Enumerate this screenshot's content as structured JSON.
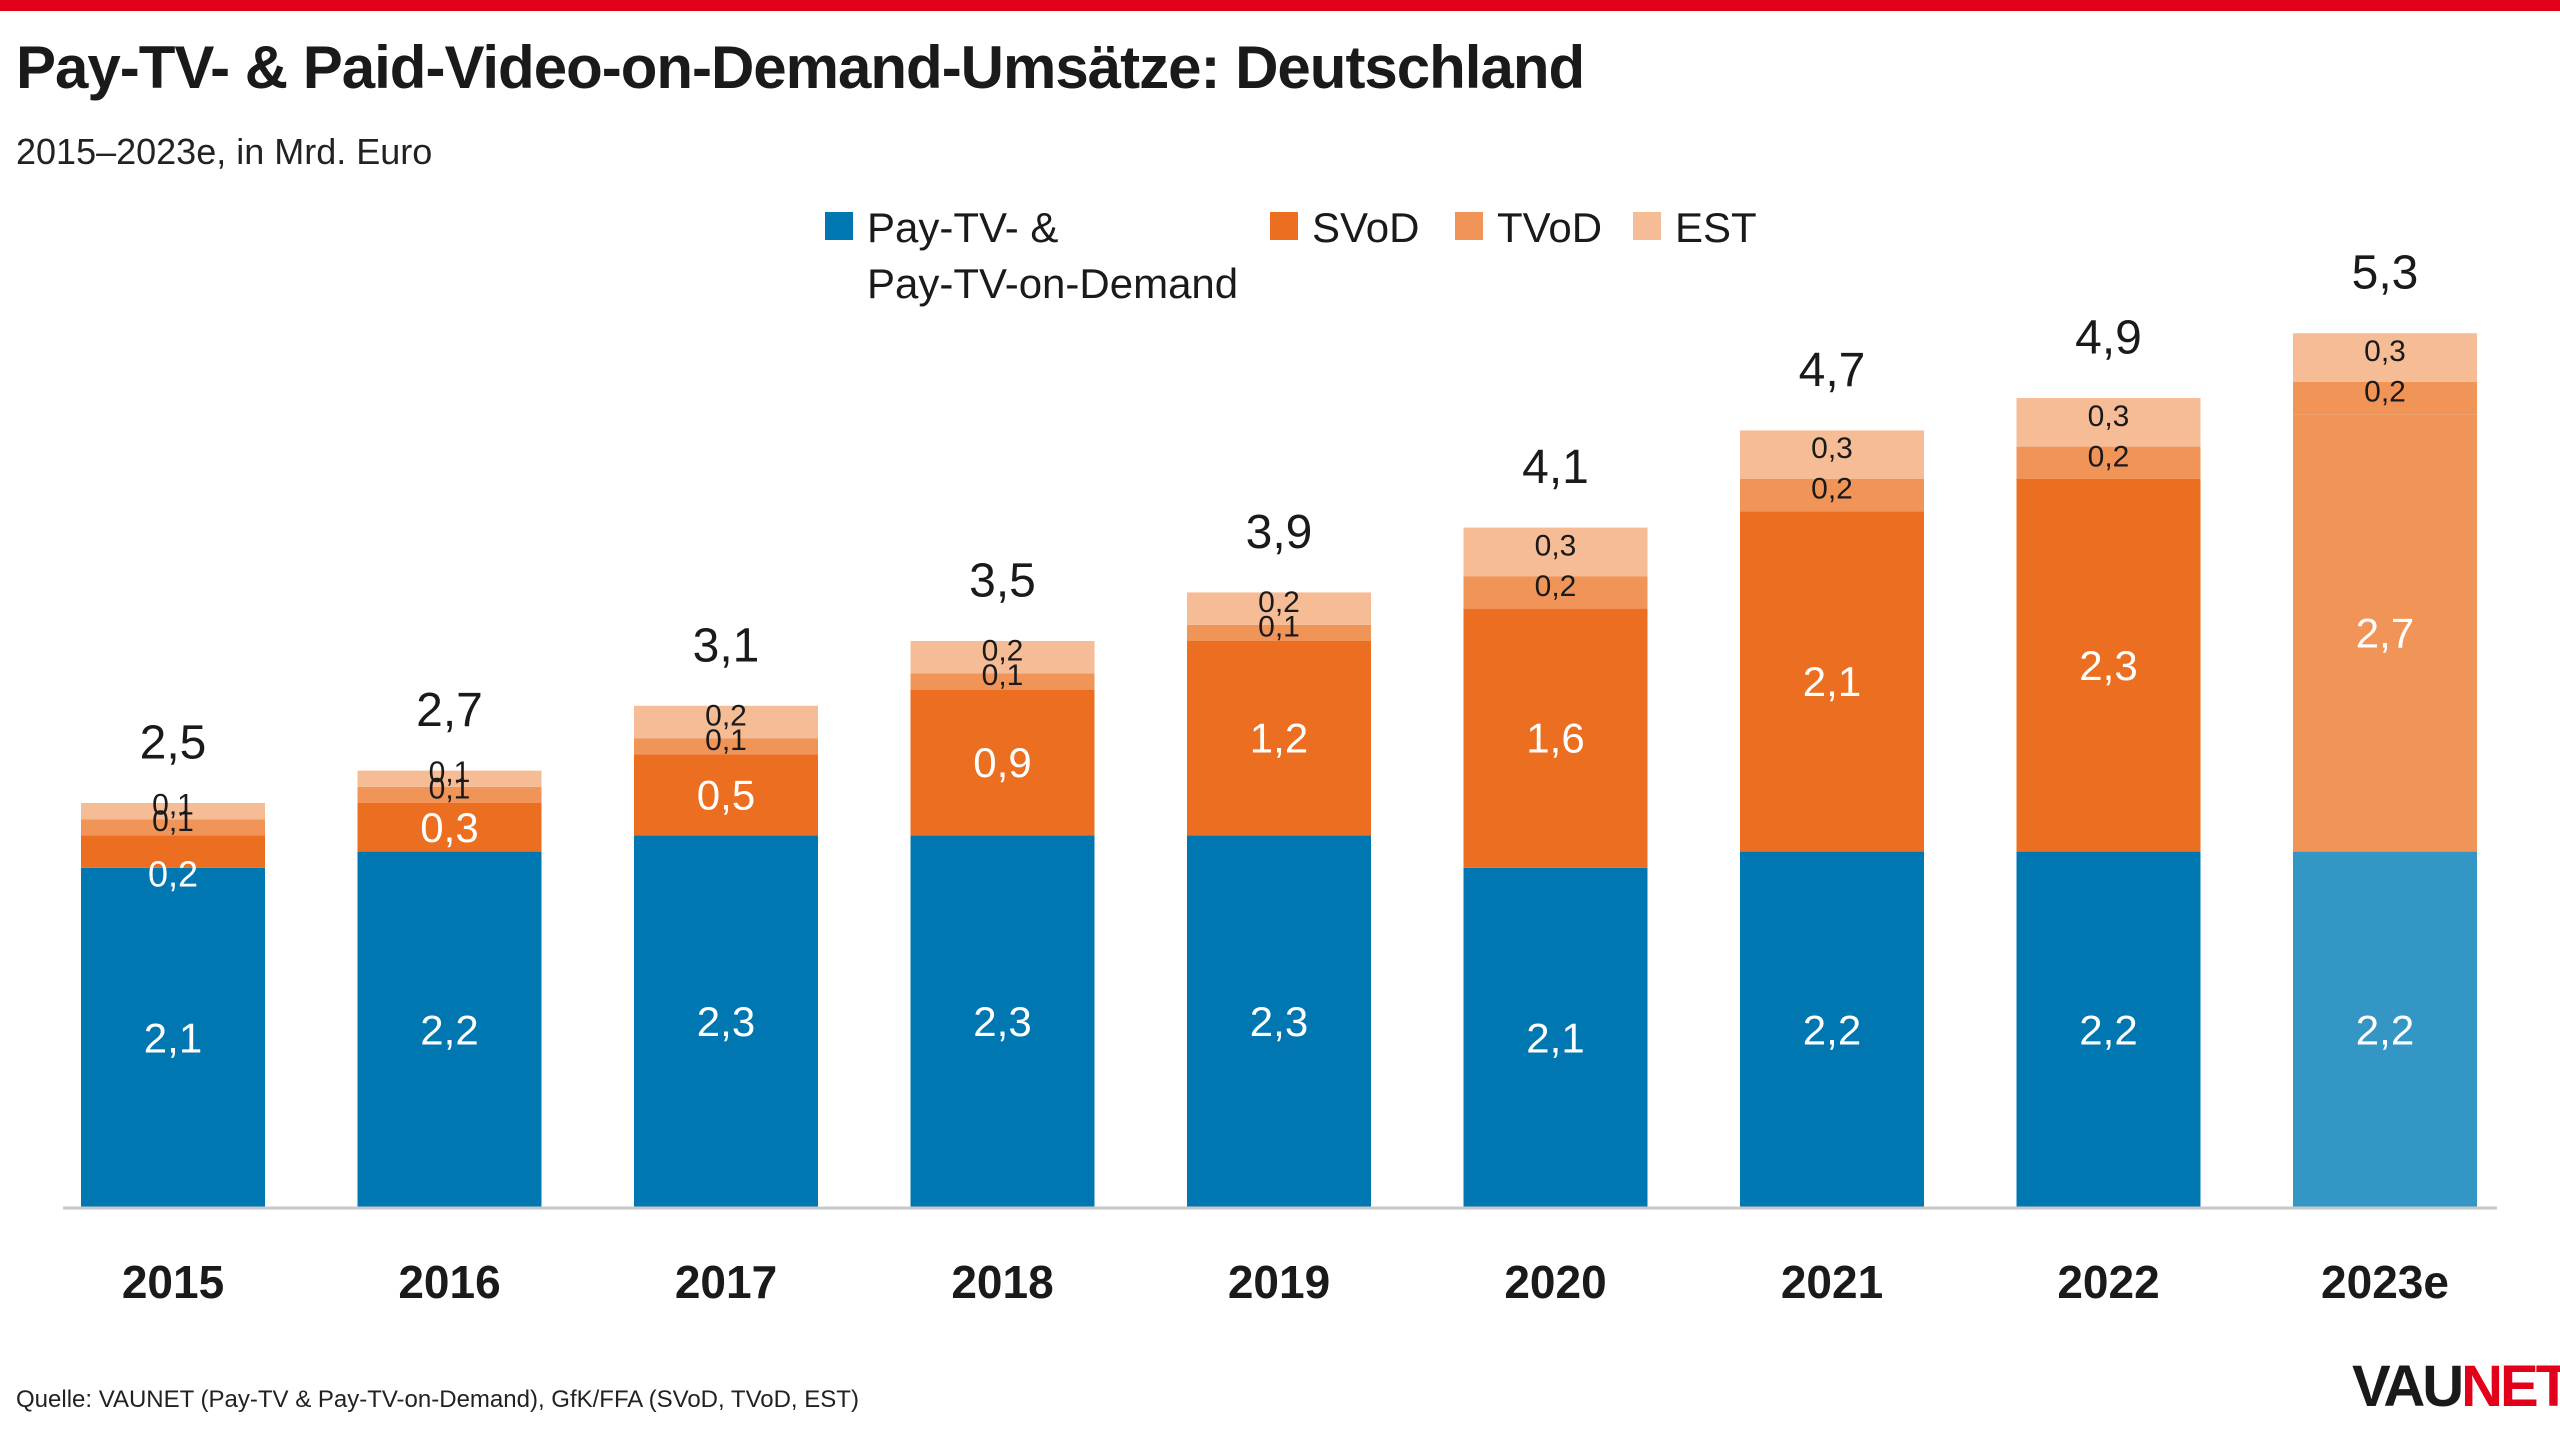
{
  "header": {
    "title": "Pay-TV- & Paid-Video-on-Demand-Umsätze: Deutschland",
    "subtitle": "2015–2023e, in Mrd. Euro"
  },
  "footer": {
    "source": "Quelle: VAUNET (Pay-TV & Pay-TV-on-Demand), GfK/FFA (SVoD, TVoD, EST)",
    "logo_part1": "VAU",
    "logo_part2": "NET"
  },
  "colors": {
    "pay_tv": "#0177b2",
    "pay_tv_forecast": "#3396c5",
    "svod": "#ec6e20",
    "tvod": "#f19458",
    "est": "#f6bc95",
    "brand_red": "#e2001a",
    "axis": "#c8c8c8"
  },
  "legend": [
    {
      "label": "Pay-TV- &\nPay-TV-on-Demand",
      "color": "#0177b2"
    },
    {
      "label": "SVoD",
      "color": "#ec6e20"
    },
    {
      "label": "TVoD",
      "color": "#f19458"
    },
    {
      "label": "EST",
      "color": "#f6bc95"
    }
  ],
  "chart_data": {
    "type": "bar",
    "stacked": true,
    "categories": [
      "2015",
      "2016",
      "2017",
      "2018",
      "2019",
      "2020",
      "2021",
      "2022",
      "2023e"
    ],
    "series": [
      {
        "name": "Pay-TV- & Pay-TV-on-Demand",
        "values": [
          2.1,
          2.2,
          2.3,
          2.3,
          2.3,
          2.1,
          2.2,
          2.2,
          2.2
        ],
        "labels": [
          "2,1",
          "2,2",
          "2,3",
          "2,3",
          "2,3",
          "2,1",
          "2,2",
          "2,2",
          "2,2"
        ]
      },
      {
        "name": "SVoD",
        "values": [
          0.2,
          0.3,
          0.5,
          0.9,
          1.2,
          1.6,
          2.1,
          2.3,
          2.7
        ],
        "labels": [
          "0,2",
          "0,3",
          "0,5",
          "0,9",
          "1,2",
          "1,6",
          "2,1",
          "2,3",
          "2,7"
        ]
      },
      {
        "name": "TVoD",
        "values": [
          0.1,
          0.1,
          0.1,
          0.1,
          0.1,
          0.2,
          0.2,
          0.2,
          0.2
        ],
        "labels": [
          "0,1",
          "0,1",
          "0,1",
          "0,1",
          "0,1",
          "0,2",
          "0,2",
          "0,2",
          "0,2"
        ]
      },
      {
        "name": "EST",
        "values": [
          0.1,
          0.1,
          0.2,
          0.2,
          0.2,
          0.3,
          0.3,
          0.3,
          0.3
        ],
        "labels": [
          "0,1",
          "0,1",
          "0,2",
          "0,2",
          "0,2",
          "0,3",
          "0,3",
          "0,3",
          "0,3"
        ]
      }
    ],
    "totals": [
      2.5,
      2.7,
      3.1,
      3.5,
      3.9,
      4.1,
      4.7,
      4.9,
      5.3
    ],
    "total_labels": [
      "2,5",
      "2,7",
      "3,1",
      "3,5",
      "3,9",
      "4,1",
      "4,7",
      "4,9",
      "5,3"
    ],
    "forecast_category": "2023e",
    "ylim": [
      0,
      5.5
    ],
    "grid": false,
    "legend_position": "top-center"
  }
}
